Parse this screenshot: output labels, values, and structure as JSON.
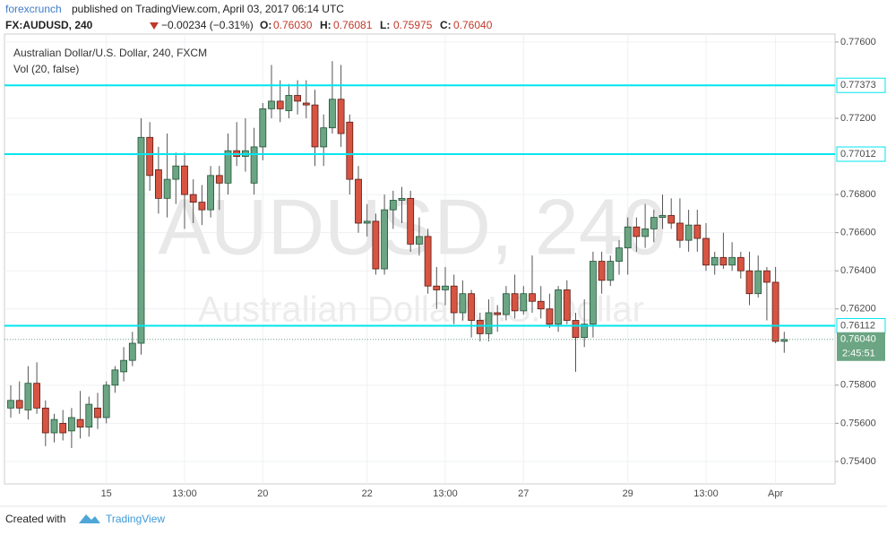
{
  "header": {
    "author": "forexcrunch",
    "published": "published on TradingView.com, April 03, 2017 06:14 UTC",
    "symbol": "FX:AUDUSD, 240",
    "change": "−0.00234 (−0.31%)",
    "ohlc": [
      "O:",
      "0.76030",
      "H:",
      "0.76081",
      "L:",
      "0.75975",
      "C:",
      "0.76040"
    ]
  },
  "footer": {
    "created": "Created with",
    "brand": "TradingView"
  },
  "chart_data": {
    "type": "candlestick",
    "title": "Australian Dollar/U.S. Dollar, 240, FXCM",
    "subtitle": "Vol (20, false)",
    "watermark": [
      "AUDUSD, 240",
      "Australian Dollar/U.S. Dollar"
    ],
    "categories": [
      null,
      null,
      null,
      null,
      null,
      null,
      null,
      null,
      null,
      null,
      null,
      "15",
      null,
      null,
      null,
      null,
      null,
      null,
      null,
      null,
      "13:00",
      null,
      null,
      null,
      null,
      null,
      null,
      null,
      null,
      "20",
      null,
      null,
      null,
      null,
      null,
      null,
      null,
      null,
      null,
      null,
      null,
      "22",
      null,
      null,
      null,
      null,
      null,
      null,
      null,
      null,
      "13:00",
      null,
      null,
      null,
      null,
      null,
      null,
      null,
      null,
      "27",
      null,
      null,
      null,
      null,
      null,
      null,
      null,
      null,
      null,
      null,
      null,
      "29",
      null,
      null,
      null,
      null,
      null,
      null,
      null,
      null,
      "13:00",
      null,
      null,
      null,
      null,
      null,
      null,
      null,
      "Apr",
      null
    ],
    "open": [
      0.7568,
      0.7572,
      0.7567,
      0.7581,
      0.7568,
      0.7555,
      0.756,
      0.7556,
      0.7562,
      0.7558,
      0.7568,
      0.7563,
      0.758,
      0.7587,
      0.7593,
      0.7602,
      0.771,
      0.7693,
      0.7678,
      0.7688,
      0.7695,
      0.768,
      0.7676,
      0.7672,
      0.769,
      0.7686,
      0.7703,
      0.77,
      0.7686,
      0.7705,
      0.7725,
      0.7729,
      0.7724,
      0.7732,
      0.7728,
      0.7727,
      0.7705,
      0.7715,
      0.773,
      0.7718,
      0.7688,
      0.7665,
      0.7666,
      0.7641,
      0.7672,
      0.7677,
      0.7678,
      0.7654,
      0.7658,
      0.7632,
      0.763,
      0.7632,
      0.7618,
      0.7628,
      0.7614,
      0.7607,
      0.7618,
      0.7617,
      0.7628,
      0.7619,
      0.7628,
      0.7624,
      0.762,
      0.7612,
      0.763,
      0.7614,
      0.7605,
      0.7612,
      0.7645,
      0.7635,
      0.7645,
      0.7652,
      0.7663,
      0.7658,
      0.7662,
      0.7668,
      0.7669,
      0.7665,
      0.7656,
      0.7664,
      0.7657,
      0.7643,
      0.7647,
      0.7643,
      0.7647,
      0.764,
      0.7628,
      0.764,
      0.7634,
      0.7603
    ],
    "high": [
      0.758,
      0.7582,
      0.759,
      0.7592,
      0.7572,
      0.7565,
      0.7567,
      0.7568,
      0.7577,
      0.7574,
      0.7576,
      0.7582,
      0.759,
      0.76,
      0.7608,
      0.772,
      0.7718,
      0.7705,
      0.7712,
      0.7702,
      0.7702,
      0.7688,
      0.7685,
      0.7695,
      0.7695,
      0.7712,
      0.7718,
      0.772,
      0.7715,
      0.7728,
      0.7748,
      0.774,
      0.7738,
      0.774,
      0.774,
      0.7735,
      0.7722,
      0.775,
      0.7748,
      0.7722,
      0.7695,
      0.7675,
      0.767,
      0.768,
      0.7682,
      0.7684,
      0.7682,
      0.7668,
      0.7662,
      0.7642,
      0.7642,
      0.7638,
      0.7635,
      0.763,
      0.7618,
      0.7625,
      0.7622,
      0.7632,
      0.7638,
      0.7632,
      0.7648,
      0.7632,
      0.7628,
      0.7632,
      0.7635,
      0.7618,
      0.7625,
      0.765,
      0.765,
      0.7648,
      0.7656,
      0.7668,
      0.7668,
      0.7675,
      0.7672,
      0.768,
      0.7678,
      0.7678,
      0.7672,
      0.7672,
      0.7665,
      0.765,
      0.766,
      0.7655,
      0.765,
      0.765,
      0.7648,
      0.7642,
      0.7642,
      0.7608
    ],
    "low": [
      0.7563,
      0.7565,
      0.7562,
      0.7565,
      0.7548,
      0.755,
      0.7551,
      0.7547,
      0.7552,
      0.7553,
      0.7557,
      0.756,
      0.7576,
      0.7582,
      0.759,
      0.7596,
      0.7682,
      0.767,
      0.7668,
      0.7675,
      0.7662,
      0.7665,
      0.7664,
      0.7668,
      0.7672,
      0.768,
      0.7695,
      0.7692,
      0.768,
      0.7698,
      0.772,
      0.7718,
      0.772,
      0.7722,
      0.772,
      0.7695,
      0.7695,
      0.7712,
      0.7705,
      0.768,
      0.766,
      0.7658,
      0.7638,
      0.7638,
      0.7662,
      0.7665,
      0.765,
      0.7648,
      0.7628,
      0.762,
      0.7622,
      0.7612,
      0.7614,
      0.7605,
      0.7603,
      0.7603,
      0.7608,
      0.7614,
      0.7615,
      0.7617,
      0.7618,
      0.7615,
      0.761,
      0.7608,
      0.7612,
      0.7587,
      0.76,
      0.7605,
      0.7628,
      0.7632,
      0.7638,
      0.7638,
      0.765,
      0.7652,
      0.7655,
      0.7662,
      0.7662,
      0.7652,
      0.765,
      0.765,
      0.764,
      0.7638,
      0.7641,
      0.764,
      0.7636,
      0.7622,
      0.7626,
      0.7614,
      0.7602,
      0.7597
    ],
    "close": [
      0.7572,
      0.7568,
      0.7581,
      0.7568,
      0.7555,
      0.7562,
      0.7555,
      0.7563,
      0.7558,
      0.757,
      0.7563,
      0.758,
      0.7588,
      0.7593,
      0.7602,
      0.771,
      0.769,
      0.7678,
      0.7688,
      0.7695,
      0.768,
      0.7676,
      0.7672,
      0.769,
      0.7686,
      0.7703,
      0.77,
      0.7703,
      0.7705,
      0.7725,
      0.7729,
      0.7725,
      0.7732,
      0.7729,
      0.7727,
      0.7705,
      0.7715,
      0.773,
      0.7712,
      0.7688,
      0.7665,
      0.7666,
      0.7641,
      0.7672,
      0.7677,
      0.7678,
      0.7654,
      0.7658,
      0.7632,
      0.763,
      0.7632,
      0.7618,
      0.7628,
      0.7614,
      0.7607,
      0.7618,
      0.7617,
      0.7628,
      0.7619,
      0.7628,
      0.7624,
      0.762,
      0.7612,
      0.763,
      0.7614,
      0.7605,
      0.7612,
      0.7645,
      0.7635,
      0.7645,
      0.7652,
      0.7663,
      0.7658,
      0.7662,
      0.7668,
      0.7669,
      0.7665,
      0.7656,
      0.7664,
      0.7657,
      0.7643,
      0.7647,
      0.7643,
      0.7647,
      0.764,
      0.7628,
      0.764,
      0.7634,
      0.7603,
      0.7604
    ],
    "up_color": "#6ba583",
    "down_color": "#d75442",
    "ylim": [
      0.75282,
      0.77642
    ],
    "yticks": [
      {
        "value": 0.754,
        "label": "0.75400"
      },
      {
        "value": 0.756,
        "label": "0.75600"
      },
      {
        "value": 0.758,
        "label": "0.75800"
      },
      {
        "value": 0.762,
        "label": "0.76200"
      },
      {
        "value": 0.764,
        "label": "0.76400"
      },
      {
        "value": 0.766,
        "label": "0.76600"
      },
      {
        "value": 0.768,
        "label": "0.76800"
      },
      {
        "value": 0.772,
        "label": "0.77200"
      },
      {
        "value": 0.776,
        "label": "0.77600"
      }
    ],
    "hlines": [
      0.77373,
      0.77012,
      0.76112
    ],
    "hline_color": "#00e5ee",
    "last_price": {
      "value": 0.7604,
      "label": "0.76040"
    },
    "countdown": "2:45:51",
    "grid": true
  }
}
